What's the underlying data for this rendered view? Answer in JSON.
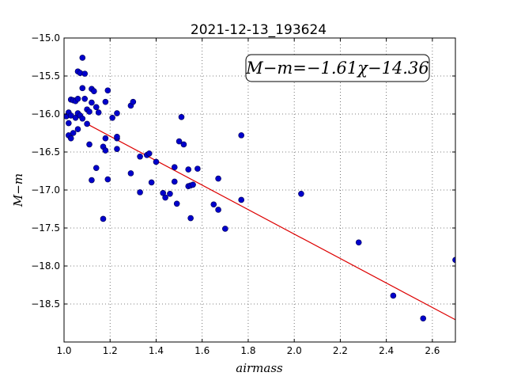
{
  "chart_data": {
    "type": "scatter",
    "title": "2021-12-13_193624",
    "xlabel": "airmass",
    "ylabel": "M−m",
    "xlim": [
      1.0,
      2.7
    ],
    "ylim": [
      -19.0,
      -15.0
    ],
    "xticks": [
      "1.0",
      "1.2",
      "1.4",
      "1.6",
      "1.8",
      "2.0",
      "2.2",
      "2.4",
      "2.6"
    ],
    "yticks": [
      "−15.0",
      "−15.5",
      "−16.0",
      "−16.5",
      "−17.0",
      "−17.5",
      "−18.0",
      "−18.5"
    ],
    "grid": true,
    "annotation": "M−m=−1.61χ−14.36",
    "fit": {
      "slope": -1.61,
      "intercept": -14.36,
      "x_range": [
        1.1,
        2.7
      ]
    },
    "colors": {
      "points": "#0000cc",
      "points_edge": "#00004d",
      "fit_line": "#dd0000"
    },
    "points": [
      {
        "x": 1.01,
        "y": -16.03
      },
      {
        "x": 1.02,
        "y": -15.98
      },
      {
        "x": 1.02,
        "y": -16.12
      },
      {
        "x": 1.02,
        "y": -16.28
      },
      {
        "x": 1.03,
        "y": -16.32
      },
      {
        "x": 1.03,
        "y": -16.02
      },
      {
        "x": 1.03,
        "y": -15.81
      },
      {
        "x": 1.04,
        "y": -16.25
      },
      {
        "x": 1.04,
        "y": -15.82
      },
      {
        "x": 1.05,
        "y": -16.05
      },
      {
        "x": 1.05,
        "y": -15.83
      },
      {
        "x": 1.06,
        "y": -15.44
      },
      {
        "x": 1.06,
        "y": -15.99
      },
      {
        "x": 1.06,
        "y": -16.2
      },
      {
        "x": 1.06,
        "y": -15.8
      },
      {
        "x": 1.07,
        "y": -15.46
      },
      {
        "x": 1.07,
        "y": -16.02
      },
      {
        "x": 1.08,
        "y": -15.26
      },
      {
        "x": 1.08,
        "y": -15.66
      },
      {
        "x": 1.08,
        "y": -16.06
      },
      {
        "x": 1.09,
        "y": -15.8
      },
      {
        "x": 1.09,
        "y": -15.47
      },
      {
        "x": 1.1,
        "y": -15.94
      },
      {
        "x": 1.1,
        "y": -16.13
      },
      {
        "x": 1.11,
        "y": -15.97
      },
      {
        "x": 1.11,
        "y": -16.4
      },
      {
        "x": 1.12,
        "y": -15.85
      },
      {
        "x": 1.12,
        "y": -15.67
      },
      {
        "x": 1.12,
        "y": -16.87
      },
      {
        "x": 1.13,
        "y": -15.7
      },
      {
        "x": 1.14,
        "y": -15.91
      },
      {
        "x": 1.14,
        "y": -16.71
      },
      {
        "x": 1.15,
        "y": -15.98
      },
      {
        "x": 1.17,
        "y": -17.38
      },
      {
        "x": 1.17,
        "y": -16.43
      },
      {
        "x": 1.18,
        "y": -15.84
      },
      {
        "x": 1.18,
        "y": -16.48
      },
      {
        "x": 1.18,
        "y": -16.32
      },
      {
        "x": 1.19,
        "y": -15.69
      },
      {
        "x": 1.19,
        "y": -16.86
      },
      {
        "x": 1.21,
        "y": -16.05
      },
      {
        "x": 1.23,
        "y": -15.99
      },
      {
        "x": 1.23,
        "y": -16.32
      },
      {
        "x": 1.23,
        "y": -16.3
      },
      {
        "x": 1.23,
        "y": -16.46
      },
      {
        "x": 1.29,
        "y": -15.89
      },
      {
        "x": 1.29,
        "y": -16.78
      },
      {
        "x": 1.3,
        "y": -15.84
      },
      {
        "x": 1.33,
        "y": -16.56
      },
      {
        "x": 1.33,
        "y": -17.03
      },
      {
        "x": 1.36,
        "y": -16.54
      },
      {
        "x": 1.37,
        "y": -16.52
      },
      {
        "x": 1.38,
        "y": -16.9
      },
      {
        "x": 1.4,
        "y": -16.63
      },
      {
        "x": 1.43,
        "y": -17.04
      },
      {
        "x": 1.44,
        "y": -17.1
      },
      {
        "x": 1.46,
        "y": -17.05
      },
      {
        "x": 1.48,
        "y": -16.7
      },
      {
        "x": 1.48,
        "y": -16.89
      },
      {
        "x": 1.49,
        "y": -17.18
      },
      {
        "x": 1.5,
        "y": -16.36
      },
      {
        "x": 1.51,
        "y": -16.04
      },
      {
        "x": 1.52,
        "y": -16.4
      },
      {
        "x": 1.54,
        "y": -16.73
      },
      {
        "x": 1.54,
        "y": -16.95
      },
      {
        "x": 1.55,
        "y": -17.37
      },
      {
        "x": 1.55,
        "y": -16.94
      },
      {
        "x": 1.56,
        "y": -16.93
      },
      {
        "x": 1.58,
        "y": -16.72
      },
      {
        "x": 1.65,
        "y": -17.19
      },
      {
        "x": 1.67,
        "y": -16.85
      },
      {
        "x": 1.67,
        "y": -17.26
      },
      {
        "x": 1.7,
        "y": -17.51
      },
      {
        "x": 1.77,
        "y": -16.28
      },
      {
        "x": 1.77,
        "y": -17.13
      },
      {
        "x": 2.03,
        "y": -17.05
      },
      {
        "x": 2.28,
        "y": -17.69
      },
      {
        "x": 2.43,
        "y": -18.39
      },
      {
        "x": 2.56,
        "y": -18.69
      },
      {
        "x": 2.7,
        "y": -17.92
      }
    ]
  }
}
